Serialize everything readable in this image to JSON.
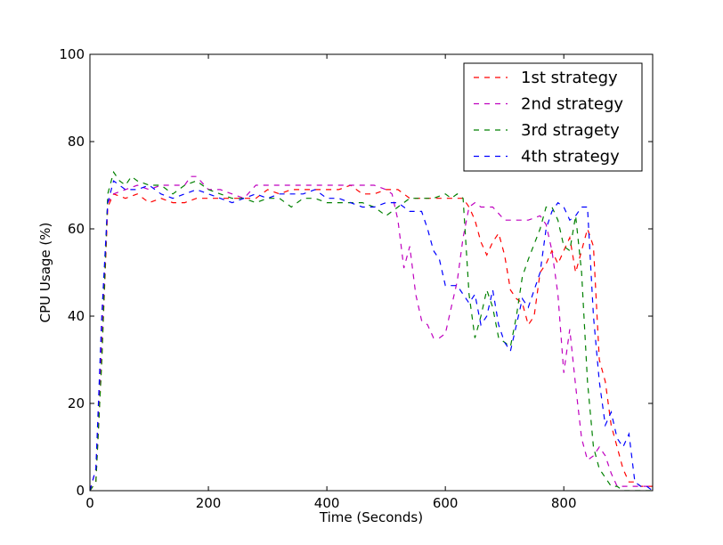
{
  "chart_data": {
    "type": "line",
    "title": "",
    "xlabel": "Time (Seconds)",
    "ylabel": "CPU Usage (%)",
    "xlim": [
      0,
      950
    ],
    "ylim": [
      0,
      100
    ],
    "xticks": [
      0,
      200,
      400,
      600,
      800
    ],
    "yticks": [
      0,
      20,
      40,
      60,
      80,
      100
    ],
    "grid": false,
    "legend_position": "top-right",
    "line_style": "dashed",
    "series": [
      {
        "name": "1st strategy",
        "color": "#ff0000",
        "x": [
          0,
          10,
          20,
          30,
          40,
          60,
          80,
          100,
          120,
          140,
          160,
          180,
          200,
          220,
          240,
          260,
          280,
          300,
          320,
          340,
          360,
          380,
          400,
          420,
          440,
          460,
          480,
          500,
          520,
          540,
          560,
          580,
          600,
          620,
          630,
          640,
          650,
          660,
          670,
          680,
          690,
          700,
          710,
          720,
          730,
          740,
          750,
          760,
          770,
          780,
          790,
          800,
          810,
          820,
          830,
          840,
          850,
          860,
          870,
          880,
          890,
          900,
          910,
          920,
          930,
          940,
          950
        ],
        "values": [
          0,
          2,
          30,
          65,
          68,
          67,
          68,
          66,
          67,
          66,
          66,
          67,
          67,
          67,
          67,
          67,
          67,
          69,
          68,
          69,
          69,
          69,
          69,
          69,
          70,
          68,
          68,
          69,
          69,
          67,
          67,
          67,
          67,
          67,
          67,
          65,
          62,
          57,
          54,
          57,
          59,
          54,
          46,
          44,
          43,
          38,
          40,
          50,
          52,
          55,
          52,
          55,
          58,
          50,
          55,
          60,
          56,
          30,
          25,
          15,
          10,
          5,
          2,
          2,
          1,
          1,
          1
        ]
      },
      {
        "name": "2nd strategy",
        "color": "#bf00bf",
        "x": [
          0,
          10,
          20,
          30,
          40,
          60,
          80,
          100,
          120,
          140,
          160,
          170,
          180,
          200,
          220,
          240,
          260,
          280,
          300,
          320,
          340,
          360,
          380,
          400,
          420,
          440,
          460,
          480,
          500,
          510,
          520,
          530,
          540,
          550,
          560,
          570,
          580,
          590,
          600,
          610,
          620,
          630,
          640,
          650,
          660,
          680,
          700,
          720,
          740,
          760,
          770,
          780,
          790,
          800,
          810,
          820,
          830,
          840,
          850,
          860,
          870,
          880,
          890,
          900,
          920,
          940,
          950
        ],
        "values": [
          0,
          5,
          35,
          66,
          68,
          69,
          70,
          69,
          70,
          70,
          70,
          72,
          72,
          69,
          69,
          68,
          67,
          70,
          70,
          70,
          70,
          70,
          70,
          70,
          70,
          70,
          70,
          70,
          69,
          68,
          62,
          51,
          56,
          45,
          39,
          38,
          35,
          35,
          36,
          42,
          48,
          58,
          65,
          66,
          65,
          65,
          62,
          62,
          62,
          63,
          61,
          55,
          45,
          27,
          37,
          24,
          12,
          7,
          8,
          10,
          8,
          4,
          1,
          1,
          1,
          1,
          1
        ]
      },
      {
        "name": "3rd stragety",
        "color": "#008000",
        "x": [
          0,
          10,
          20,
          30,
          40,
          50,
          60,
          70,
          80,
          100,
          120,
          140,
          160,
          180,
          200,
          220,
          240,
          260,
          280,
          300,
          320,
          340,
          360,
          380,
          400,
          420,
          440,
          460,
          480,
          500,
          520,
          540,
          560,
          580,
          600,
          610,
          620,
          630,
          640,
          650,
          660,
          670,
          680,
          690,
          700,
          710,
          720,
          730,
          740,
          760,
          770,
          780,
          790,
          800,
          810,
          820,
          830,
          840,
          850,
          860,
          870,
          880,
          890,
          900,
          920,
          940,
          950
        ],
        "values": [
          0,
          2,
          30,
          68,
          73,
          71,
          70,
          72,
          71,
          70,
          70,
          68,
          70,
          71,
          69,
          68,
          67,
          67,
          66,
          67,
          67,
          65,
          67,
          67,
          66,
          66,
          66,
          66,
          65,
          63,
          65,
          67,
          67,
          67,
          68,
          67,
          68,
          67,
          45,
          35,
          40,
          46,
          42,
          35,
          34,
          33,
          40,
          49,
          53,
          60,
          65,
          65,
          62,
          56,
          55,
          63,
          50,
          25,
          10,
          5,
          3,
          1,
          1,
          0,
          0,
          0,
          0
        ]
      },
      {
        "name": "4th strategy",
        "color": "#0000ff",
        "x": [
          0,
          10,
          20,
          30,
          40,
          60,
          80,
          100,
          120,
          140,
          160,
          180,
          200,
          220,
          240,
          260,
          280,
          300,
          320,
          340,
          360,
          380,
          400,
          420,
          440,
          460,
          480,
          500,
          520,
          540,
          560,
          570,
          580,
          590,
          600,
          610,
          620,
          630,
          640,
          650,
          660,
          670,
          680,
          690,
          700,
          710,
          720,
          730,
          740,
          760,
          770,
          780,
          790,
          800,
          810,
          820,
          830,
          840,
          850,
          860,
          870,
          880,
          890,
          900,
          910,
          920,
          930,
          940,
          950
        ],
        "values": [
          0,
          5,
          40,
          66,
          71,
          69,
          69,
          70,
          68,
          67,
          68,
          69,
          68,
          67,
          66,
          67,
          68,
          67,
          68,
          68,
          68,
          69,
          67,
          67,
          66,
          65,
          65,
          66,
          66,
          64,
          64,
          60,
          55,
          53,
          47,
          47,
          47,
          45,
          43,
          45,
          38,
          40,
          46,
          38,
          34,
          32,
          38,
          44,
          42,
          50,
          60,
          64,
          66,
          65,
          62,
          63,
          65,
          65,
          40,
          25,
          15,
          18,
          12,
          10,
          13,
          2,
          1,
          1,
          0
        ]
      }
    ]
  }
}
